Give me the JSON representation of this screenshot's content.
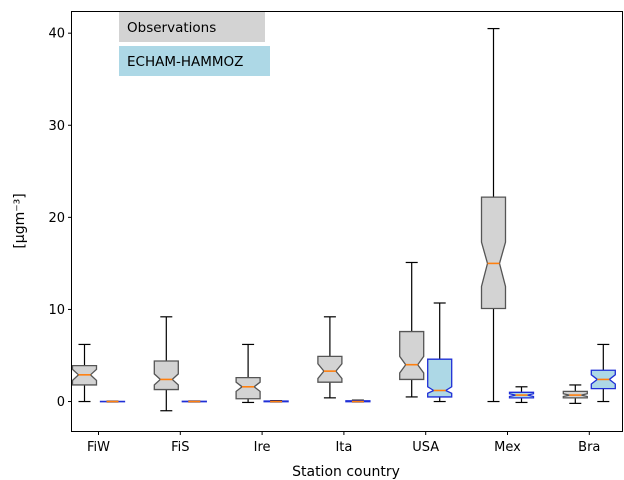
{
  "chart_data": {
    "type": "boxplot",
    "title": "",
    "xlabel": "Station country",
    "ylabel": "[µgm⁻³]",
    "ylim": [
      -3.2,
      42.3
    ],
    "yticks": [
      0,
      10,
      20,
      30,
      40
    ],
    "categories": [
      "FiW",
      "FiS",
      "Ire",
      "Ita",
      "USA",
      "Mex",
      "Bra"
    ],
    "notched": true,
    "grid": false,
    "legend": "top-left",
    "series": [
      {
        "name": "Observations",
        "fill_color": "#d3d3d3",
        "edge_color": "#555555",
        "boxes": [
          {
            "whisker_low": 0.0,
            "q1": 1.8,
            "median": 2.9,
            "q3": 3.9,
            "whisker_high": 6.2,
            "notch_low": 2.3,
            "notch_high": 3.5
          },
          {
            "whisker_low": -1.0,
            "q1": 1.3,
            "median": 2.4,
            "q3": 4.4,
            "whisker_high": 9.2,
            "notch_low": 1.8,
            "notch_high": 3.0
          },
          {
            "whisker_low": -0.1,
            "q1": 0.3,
            "median": 1.6,
            "q3": 2.6,
            "whisker_high": 6.2,
            "notch_low": 1.1,
            "notch_high": 2.1
          },
          {
            "whisker_low": 0.4,
            "q1": 2.1,
            "median": 3.3,
            "q3": 4.9,
            "whisker_high": 9.2,
            "notch_low": 2.5,
            "notch_high": 4.1
          },
          {
            "whisker_low": 0.5,
            "q1": 2.4,
            "median": 4.0,
            "q3": 7.6,
            "whisker_high": 15.1,
            "notch_low": 3.1,
            "notch_high": 4.9
          },
          {
            "whisker_low": 0.0,
            "q1": 10.1,
            "median": 15.0,
            "q3": 22.2,
            "whisker_high": 40.5,
            "notch_low": 12.5,
            "notch_high": 17.3
          },
          {
            "whisker_low": -0.2,
            "q1": 0.4,
            "median": 0.7,
            "q3": 1.1,
            "whisker_high": 1.8,
            "notch_low": 0.55,
            "notch_high": 0.85
          }
        ]
      },
      {
        "name": "ECHAM-HAMMOZ",
        "fill_color": "#add8e6",
        "edge_color": "#1f2fd6",
        "boxes": [
          {
            "whisker_low": -0.05,
            "q1": -0.02,
            "median": 0.0,
            "q3": 0.02,
            "whisker_high": 0.05,
            "notch_low": -0.01,
            "notch_high": 0.01
          },
          {
            "whisker_low": -0.05,
            "q1": -0.02,
            "median": 0.0,
            "q3": 0.03,
            "whisker_high": 0.06,
            "notch_low": -0.01,
            "notch_high": 0.01
          },
          {
            "whisker_low": -0.05,
            "q1": -0.02,
            "median": 0.0,
            "q3": 0.05,
            "whisker_high": 0.1,
            "notch_low": -0.01,
            "notch_high": 0.02
          },
          {
            "whisker_low": -0.05,
            "q1": -0.02,
            "median": 0.0,
            "q3": 0.08,
            "whisker_high": 0.15,
            "notch_low": -0.01,
            "notch_high": 0.03
          },
          {
            "whisker_low": 0.0,
            "q1": 0.5,
            "median": 1.2,
            "q3": 4.6,
            "whisker_high": 10.7,
            "notch_low": 0.9,
            "notch_high": 1.6
          },
          {
            "whisker_low": -0.1,
            "q1": 0.4,
            "median": 0.7,
            "q3": 1.0,
            "whisker_high": 1.6,
            "notch_low": 0.55,
            "notch_high": 0.85
          },
          {
            "whisker_low": 0.0,
            "q1": 1.4,
            "median": 2.4,
            "q3": 3.4,
            "whisker_high": 6.2,
            "notch_low": 1.9,
            "notch_high": 2.9
          }
        ]
      }
    ],
    "median_color": "#ff7f0e"
  }
}
